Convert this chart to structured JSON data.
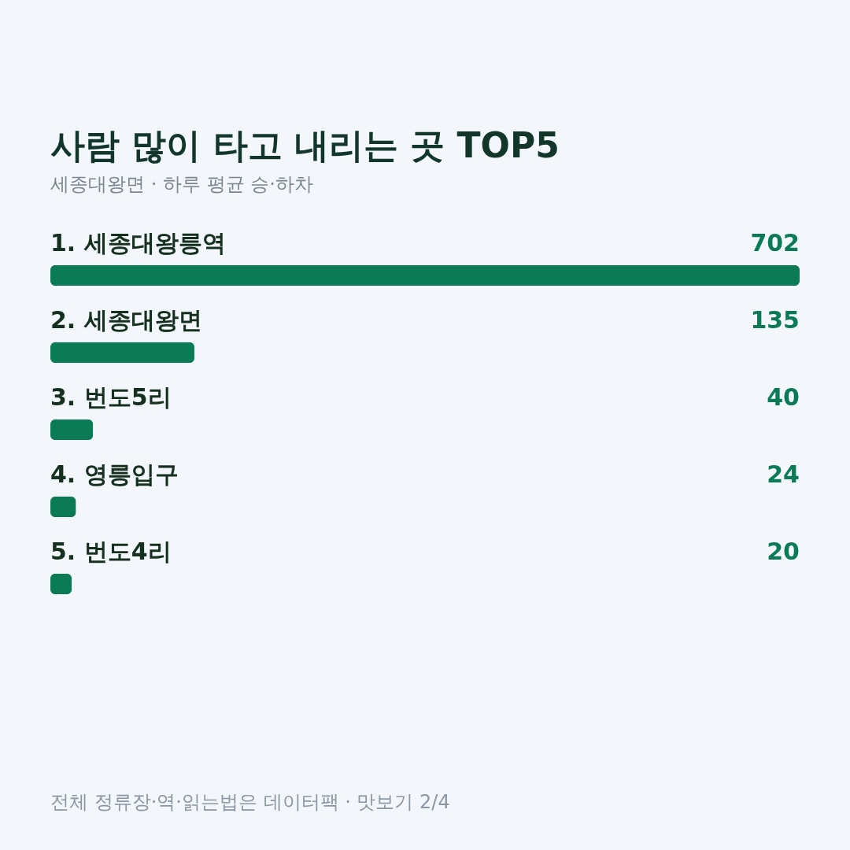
{
  "chart_data": {
    "type": "bar",
    "orientation": "horizontal",
    "title": "사람 많이 타고 내리는 곳 TOP5",
    "subtitle": "세종대왕면 · 하루 평균 승·하차",
    "categories": [
      "1. 세종대왕릉역",
      "2. 세종대왕면",
      "3. 번도5리",
      "4. 영릉입구",
      "5. 번도4리"
    ],
    "values": [
      702,
      135,
      40,
      24,
      20
    ],
    "color": "#0b7b56",
    "data_labels": true,
    "annotations": [
      "전체 정류장·역·읽는법은 데이터팩 · 맛보기 2/4"
    ]
  }
}
